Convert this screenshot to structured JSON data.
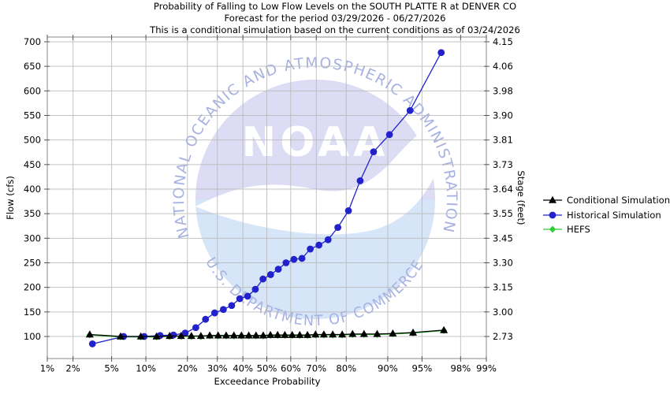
{
  "title": {
    "line1": "Probability of Falling to Low Flow Levels on the SOUTH PLATTE R at DENVER CO",
    "line2": "Forecast for the period 03/29/2026 - 06/27/2026",
    "line3": "This is a conditional simulation based on the current conditions as of 03/24/2026"
  },
  "chart_data": {
    "type": "line",
    "x_axis": {
      "label": "Exceedance Probability",
      "scale": "probit",
      "range": [
        1,
        99
      ],
      "tick_values": [
        1,
        2,
        5,
        10,
        20,
        30,
        40,
        50,
        60,
        70,
        80,
        90,
        95,
        98,
        99
      ],
      "tick_labels": [
        "1%",
        "2%",
        "5%",
        "10%",
        "20%",
        "30%",
        "40%",
        "50%",
        "60%",
        "70%",
        "80%",
        "90%",
        "95%",
        "98%",
        "99%"
      ]
    },
    "y_axis_left": {
      "label": "Flow (cfs)",
      "tick_values": [
        700,
        650,
        600,
        550,
        500,
        450,
        400,
        350,
        300,
        250,
        200,
        150,
        100
      ],
      "range": [
        57,
        710
      ]
    },
    "y_axis_right": {
      "label": "Stage (feet)",
      "tick_labels": [
        "4.15",
        "4.06",
        "3.98",
        "3.90",
        "3.81",
        "3.73",
        "3.64",
        "3.55",
        "3.45",
        "3.30",
        "3.15",
        "3.00",
        "2.73"
      ]
    },
    "grid": {
      "on": true,
      "color": "#b9b9b9",
      "border_color": "#8a8a8a",
      "tick_color": "#555555"
    },
    "legend": {
      "position": "right"
    },
    "series": [
      {
        "name": "Conditional Simulation",
        "color": "#000000",
        "marker": "triangle",
        "probabilities": [
          3.03,
          6.06,
          9.09,
          12.12,
          15.15,
          18.18,
          21.21,
          24.24,
          27.27,
          30.3,
          33.33,
          36.36,
          39.39,
          42.42,
          45.45,
          48.48,
          51.52,
          54.55,
          57.58,
          60.61,
          63.64,
          66.67,
          69.7,
          72.73,
          75.76,
          78.79,
          81.82,
          84.85,
          87.88,
          90.91,
          93.94,
          96.97
        ],
        "values": [
          104,
          100,
          100,
          100,
          101,
          101,
          101,
          101,
          102,
          102,
          102,
          102,
          102,
          102,
          102,
          102,
          103,
          103,
          103,
          103,
          103,
          103,
          104,
          104,
          104,
          104,
          105,
          105,
          105,
          106,
          108,
          113
        ]
      },
      {
        "name": "Historical Simulation",
        "color": "#2222cc",
        "marker": "circle",
        "probabilities": [
          3.23,
          6.45,
          9.68,
          12.9,
          16.13,
          19.35,
          22.58,
          25.81,
          29.03,
          32.26,
          35.48,
          38.71,
          41.94,
          45.16,
          48.39,
          51.61,
          54.84,
          58.06,
          61.29,
          64.52,
          67.74,
          70.97,
          74.19,
          77.42,
          80.65,
          83.87,
          87.1,
          90.32,
          93.55,
          96.77
        ],
        "values": [
          85,
          100,
          100,
          102,
          103,
          107,
          118,
          135,
          148,
          155,
          163,
          177,
          182,
          196,
          217,
          226,
          237,
          250,
          257,
          259,
          278,
          286,
          297,
          322,
          356,
          417,
          476,
          511,
          560,
          678
        ]
      },
      {
        "name": "HEFS",
        "color": "#33cc33",
        "marker": "diamond",
        "probabilities": [
          3.03,
          6.06,
          9.09,
          12.12,
          15.15,
          18.18,
          21.21,
          24.24,
          27.27,
          30.3,
          33.33,
          36.36,
          39.39,
          42.42,
          45.45,
          48.48,
          51.52,
          54.55,
          57.58,
          60.61,
          63.64,
          66.67,
          69.7,
          72.73,
          75.76,
          78.79,
          81.82,
          84.85,
          87.88,
          90.91,
          93.94,
          96.97
        ],
        "values": [
          103,
          99,
          99,
          99,
          100,
          100,
          100,
          100,
          101,
          101,
          101,
          101,
          101,
          101,
          101,
          101,
          102,
          102,
          102,
          102,
          102,
          102,
          103,
          103,
          103,
          103,
          104,
          104,
          104,
          105,
          107,
          112
        ]
      }
    ]
  },
  "watermark": {
    "logo_text": "NOAA",
    "arc_top": "NATIONAL OCEANIC AND ATMOSPHERIC ADMINISTRATION",
    "arc_bottom": "U.S. DEPARTMENT OF COMMERCE",
    "dome_color": "#dcdcf4",
    "wave_color": "#d6e5f7",
    "bird_color": "#ffffff",
    "ring_text_color": "#a8b2e2",
    "logo_text_color": "#ffffff"
  }
}
